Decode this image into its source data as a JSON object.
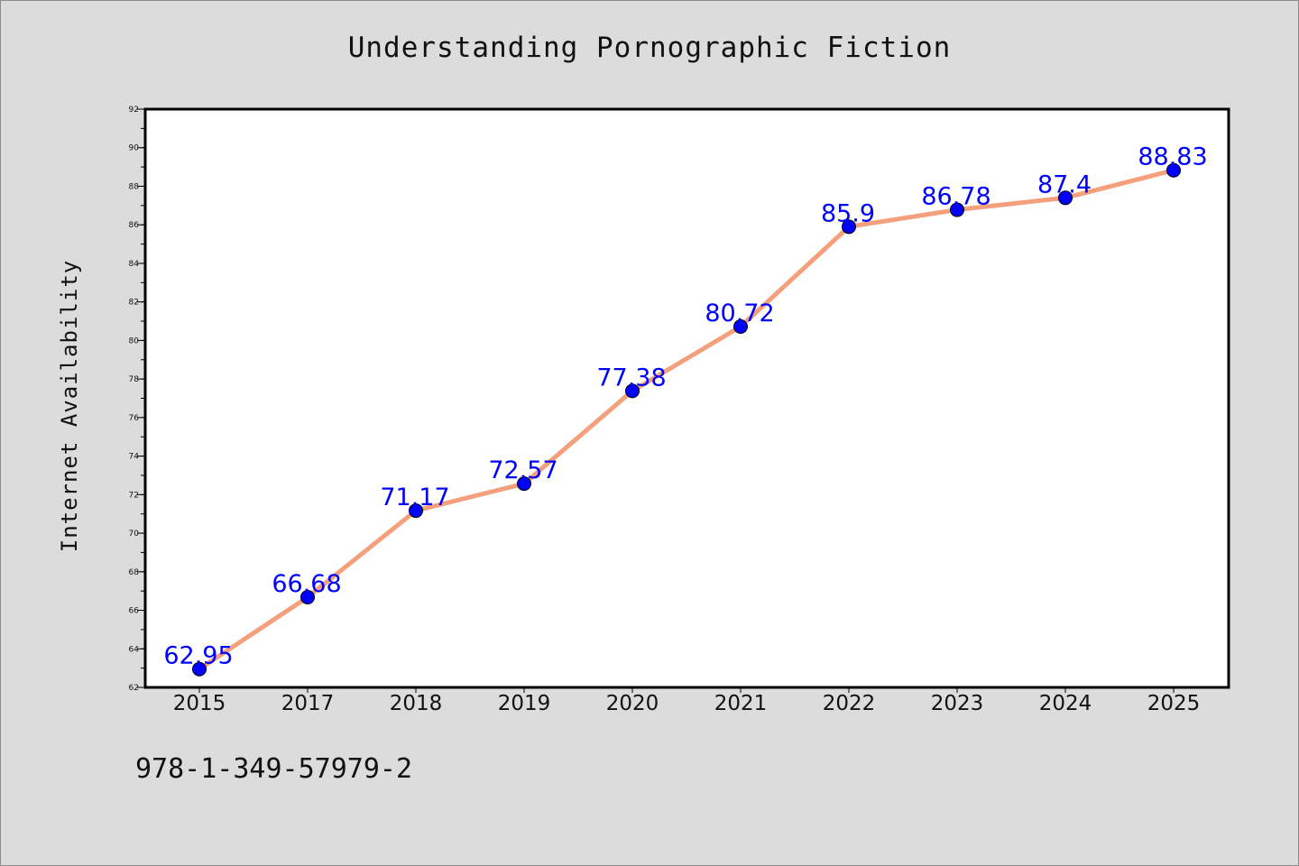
{
  "footer_text": "978-1-349-57979-2",
  "chart_data": {
    "type": "line",
    "title": "Understanding Pornographic Fiction",
    "xlabel": "",
    "ylabel": "Internet Availability",
    "categories": [
      "2015",
      "2017",
      "2018",
      "2019",
      "2020",
      "2021",
      "2022",
      "2023",
      "2024",
      "2025"
    ],
    "values": [
      62.95,
      66.68,
      71.17,
      72.57,
      77.38,
      80.72,
      85.9,
      86.78,
      87.4,
      88.83
    ],
    "data_labels": [
      "62.95",
      "66.68",
      "71.17",
      "72.57",
      "77.38",
      "80.72",
      "85.9",
      "86.78",
      "87.4",
      "88.83"
    ],
    "ylim": [
      62,
      92
    ],
    "yticks": [
      62,
      64,
      66,
      68,
      70,
      72,
      74,
      76,
      78,
      80,
      82,
      84,
      86,
      88,
      90,
      92
    ],
    "grid": false,
    "legend": "none",
    "line_color": "#f4a07c",
    "marker_color": "#0000ff",
    "label_color": "#0000ff",
    "axes_background": "#ffffff",
    "figure_background": "#dcdcdc"
  }
}
